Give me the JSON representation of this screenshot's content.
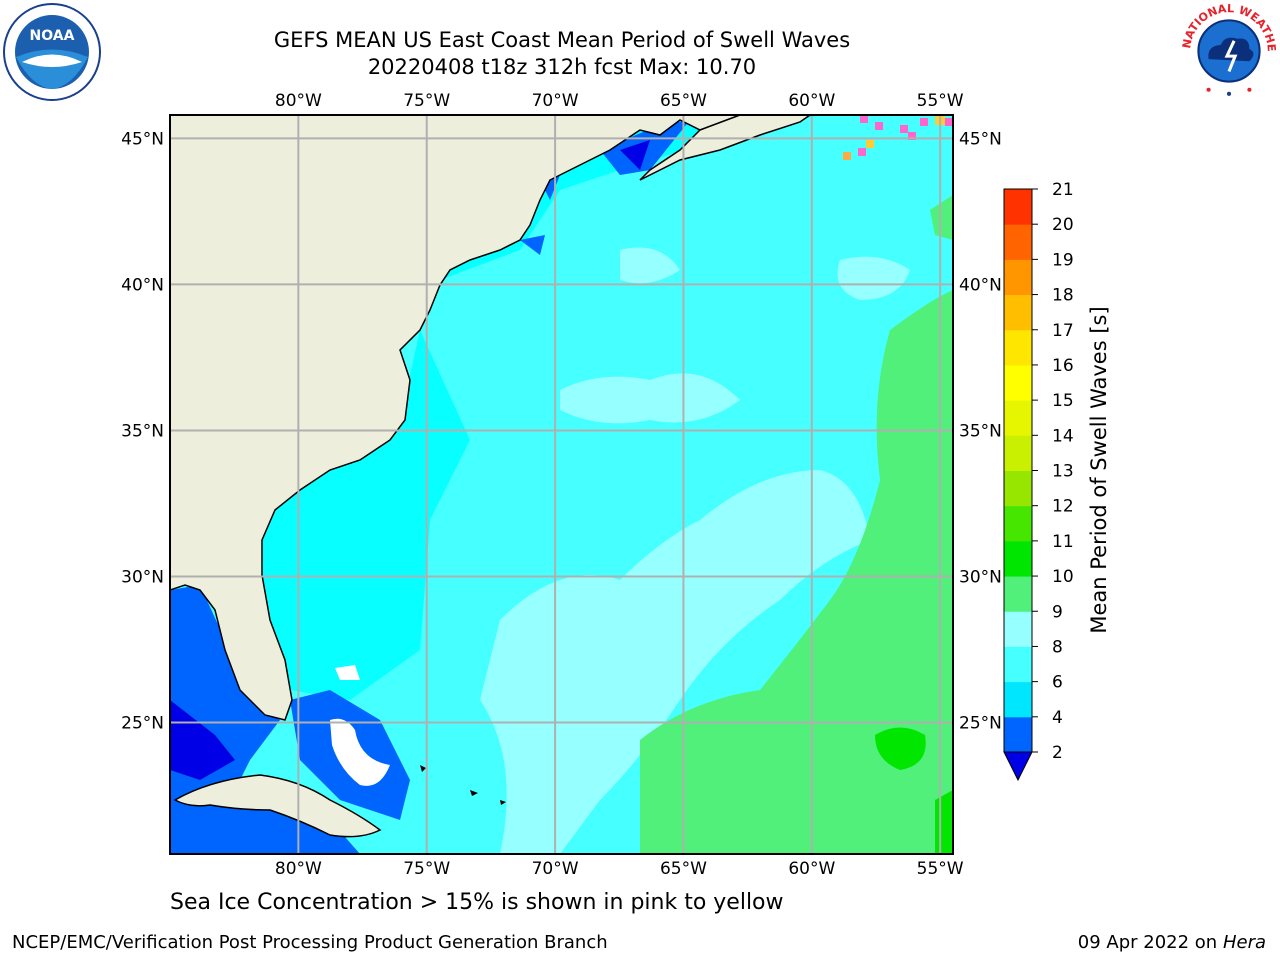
{
  "title": {
    "line1": "GEFS MEAN US East Coast Mean Period of Swell Waves",
    "line2": "20220408 t18z 312h fcst   Max: 10.70"
  },
  "map": {
    "lon_labels": [
      "80°W",
      "75°W",
      "70°W",
      "65°W",
      "60°W",
      "55°W"
    ],
    "lat_labels": [
      "45°N",
      "40°N",
      "35°N",
      "30°N",
      "25°N"
    ],
    "lon_values": [
      -80,
      -75,
      -70,
      -65,
      -60,
      -55
    ],
    "lat_values": [
      45,
      40,
      35,
      30,
      25
    ],
    "lon_range": [
      -85,
      -54.5
    ],
    "lat_range": [
      20.5,
      45.8
    ],
    "land_color": "#eeeedd",
    "grid_color": "#b0b0b0"
  },
  "colorbar": {
    "label": "Mean Period of Swell Waves [s]",
    "ticks": [
      "2",
      "4",
      "6",
      "8",
      "9",
      "10",
      "11",
      "12",
      "13",
      "14",
      "15",
      "16",
      "17",
      "18",
      "19",
      "20",
      "21"
    ],
    "colors": [
      "#0064ff",
      "#00e6ff",
      "#46ffff",
      "#96ffff",
      "#50f07a",
      "#00e600",
      "#46e600",
      "#96e600",
      "#c8f000",
      "#e6f500",
      "#ffff00",
      "#ffe600",
      "#ffbe00",
      "#ff9600",
      "#ff6400",
      "#ff3200"
    ],
    "under_color": "#0000e6"
  },
  "subtitle": "Sea Ice Concentration > 15% is shown in pink to yellow",
  "footer": {
    "left": "NCEP/EMC/Verification Post Processing Product Generation Branch",
    "date": "09 Apr 2022 on ",
    "machine": "Hera"
  },
  "logos": {
    "noaa_text": "NOAA",
    "nws_text": "NATIONAL WEATHER SERVICE"
  }
}
